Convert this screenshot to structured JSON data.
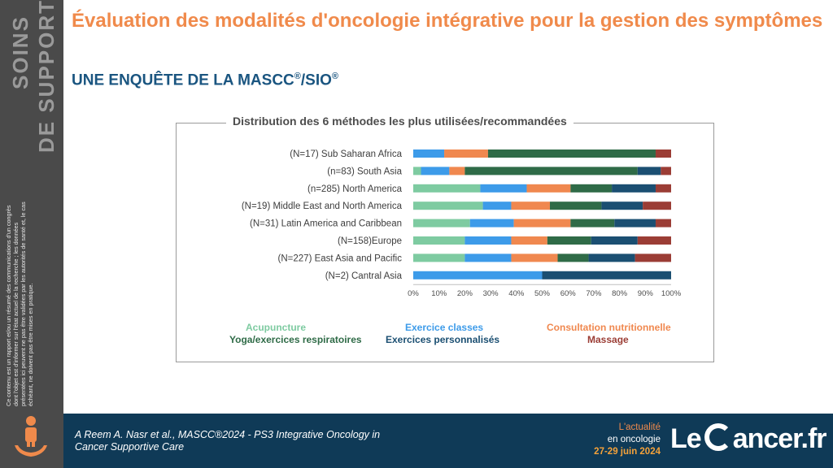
{
  "sidebar": {
    "label_line1": "SOINS",
    "label_line2": "DE SUPPORT",
    "disclaimer": "Ce contenu est un rapport et/ou un résumé des communications d'un congrès dont l'objet est d'informer sur l'état actuel de la recherche ; les données présentées ici peuvent ne pas être validées par les autorités de santé et, le cas échéant, ne doivent pas être mises en pratique."
  },
  "header": {
    "title": "Évaluation des modalités d'oncologie intégrative pour la gestion des symptômes",
    "subtitle_prefix": "UNE ENQUÊTE DE LA MASCC",
    "subtitle_reg1": "®",
    "subtitle_mid": "/SIO",
    "subtitle_reg2": "®"
  },
  "chart_data": {
    "type": "bar",
    "orientation": "horizontal",
    "stacked": true,
    "title": "Distribution des 6 méthodes les plus utilisées/recommandées",
    "categories": [
      "(N=17) Sub Saharan Africa",
      "(n=83) South Asia",
      "(n=285) North America",
      "(N=19) Middle East and North America",
      "(N=31) Latin America and Caribbean",
      "(N=158)Europe",
      "(N=227) East Asia and Pacific",
      "(N=2) Cantral Asia"
    ],
    "xlim": [
      0,
      100
    ],
    "x_ticks": [
      "0%",
      "10%",
      "20%",
      "30%",
      "40%",
      "50%",
      "60%",
      "70%",
      "80%",
      "90%",
      "100%"
    ],
    "series": [
      {
        "name": "Acupuncture",
        "color": "#7ecba1",
        "values": [
          0,
          3,
          26,
          27,
          22,
          20,
          20,
          0
        ]
      },
      {
        "name": "Exercice classes",
        "color": "#3d9be9",
        "values": [
          12,
          11,
          18,
          11,
          17,
          18,
          18,
          50
        ]
      },
      {
        "name": "Consultation nutritionnelle",
        "color": "#f0884f",
        "values": [
          17,
          6,
          17,
          15,
          22,
          14,
          18,
          0
        ]
      },
      {
        "name": "Yoga/exercices respiratoires",
        "color": "#2f6b47",
        "values": [
          65,
          67,
          16,
          20,
          17,
          17,
          12,
          0
        ]
      },
      {
        "name": "Exercices personnalisés",
        "color": "#1b4f72",
        "values": [
          0,
          9,
          17,
          16,
          16,
          18,
          18,
          50
        ]
      },
      {
        "name": "Massage",
        "color": "#9b3d35",
        "values": [
          6,
          4,
          6,
          11,
          6,
          13,
          14,
          0
        ]
      }
    ],
    "legend_placement": "bottom"
  },
  "legend_text_colors": {
    "Acupuncture": "#7ecba1",
    "Exercice classes": "#3d9be9",
    "Consultation nutritionnelle": "#f0884f",
    "Yoga/exercices respiratoires": "#2f6b47",
    "Exercices personnalisés": "#1b4f72",
    "Massage": "#9b3d35"
  },
  "footer": {
    "reference_line1": "A Reem A. Nasr et al., MASCC®2024 - PS3 Integrative Oncology in",
    "reference_line2": "Cancer Supportive Care",
    "event_line1": "L'actualité",
    "event_line2": "en oncologie",
    "event_line3": "27-29 juin 2024",
    "brand_le": "Le",
    "brand_rest": "ancer.fr"
  },
  "icons": {
    "sidebar_icon": "person-in-hand-icon",
    "brand_icon": "c-circle-logo-icon"
  },
  "colors": {
    "accent_orange": "#f08a4b",
    "navy": "#0f3a57",
    "sidebar_gray": "#4a4a4a"
  }
}
